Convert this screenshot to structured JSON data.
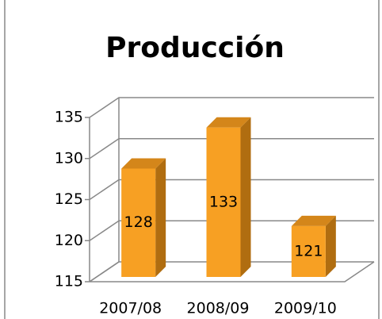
{
  "chart_data": {
    "type": "bar3d",
    "title": "Producción",
    "categories": [
      "2007/08",
      "2008/09",
      "2009/10"
    ],
    "values": [
      128,
      133,
      121
    ],
    "color": "#f7a023",
    "ylim": [
      115,
      135
    ],
    "yticks": [
      115,
      120,
      125,
      130,
      135
    ],
    "grid": true
  }
}
